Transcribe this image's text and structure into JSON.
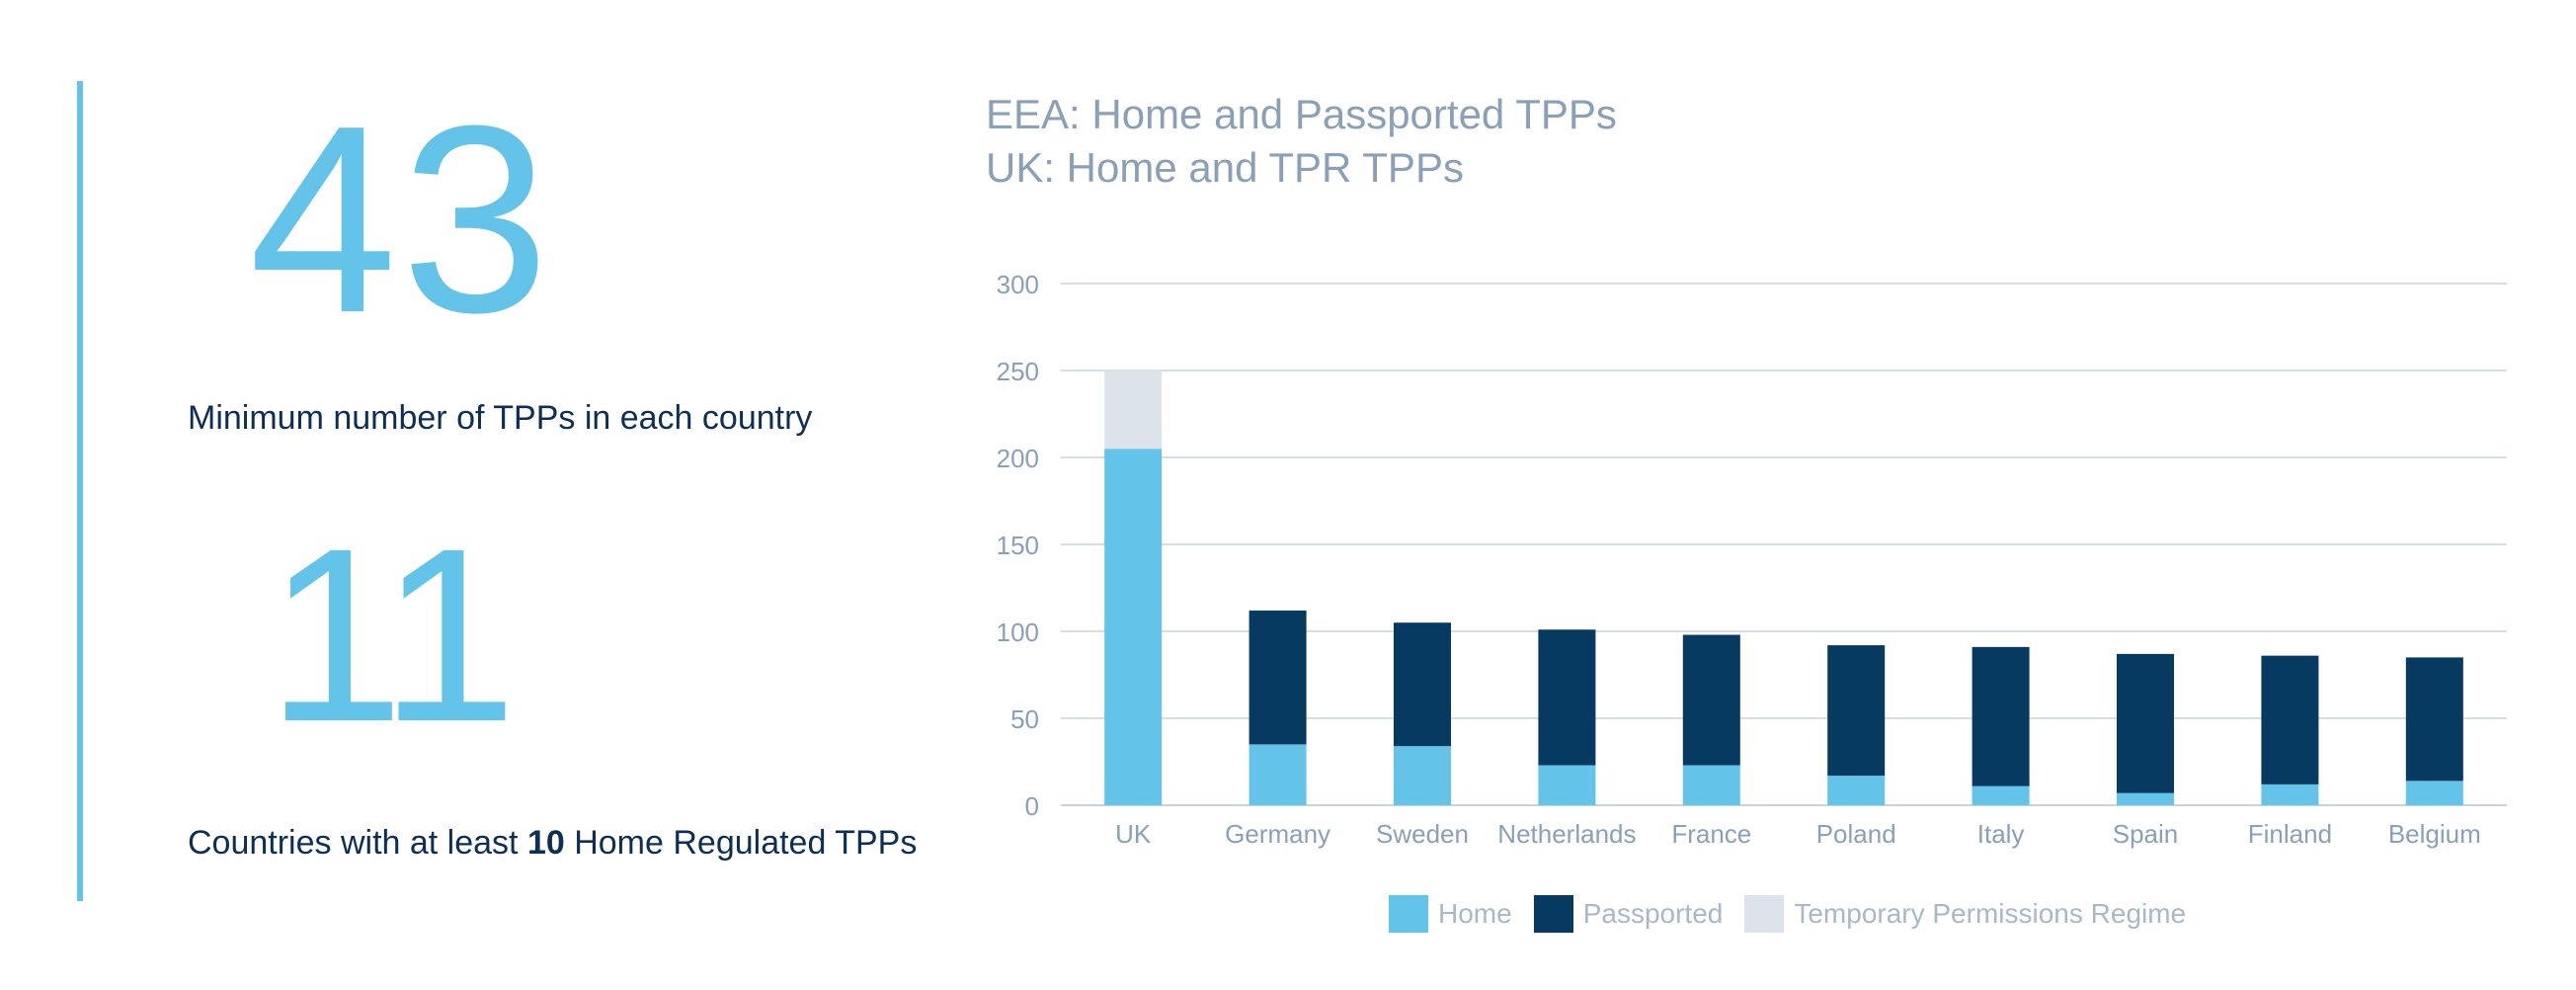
{
  "stats": {
    "stat1": {
      "value": "43",
      "label": "Minimum number of TPPs in each country"
    },
    "stat2": {
      "value": "11",
      "label_pre": "Countries with at least ",
      "label_bold": "10",
      "label_post": " Home Regulated TPPs"
    }
  },
  "colors": {
    "accent": "#63c3e8",
    "home": "#63c3e8",
    "passported": "#063a60",
    "tpr": "#dde3ea",
    "text_dark": "#0d2f55",
    "text_light": "#8aa0b8"
  },
  "chart_data": {
    "type": "bar",
    "stacked": true,
    "title_lines": [
      "EEA:  Home and Passported TPPs",
      "UK:  Home and TPR TPPs"
    ],
    "categories": [
      "UK",
      "Germany",
      "Sweden",
      "Netherlands",
      "France",
      "Poland",
      "Italy",
      "Spain",
      "Finland",
      "Belgium"
    ],
    "series": [
      {
        "name": "Home",
        "color": "#63c3e8",
        "values": [
          205,
          35,
          34,
          23,
          23,
          17,
          11,
          7,
          12,
          14
        ]
      },
      {
        "name": "Passported",
        "color": "#063a60",
        "values": [
          0,
          77,
          71,
          78,
          75,
          75,
          80,
          80,
          74,
          71
        ]
      },
      {
        "name": "Temporary Permissions Regime",
        "color": "#dde3ea",
        "values": [
          45,
          0,
          0,
          0,
          0,
          0,
          0,
          0,
          0,
          0
        ]
      }
    ],
    "ylim": [
      0,
      300
    ],
    "yticks": [
      0,
      50,
      100,
      150,
      200,
      250,
      300
    ],
    "xlabel": "",
    "ylabel": "",
    "grid": true,
    "legend": "bottom"
  }
}
